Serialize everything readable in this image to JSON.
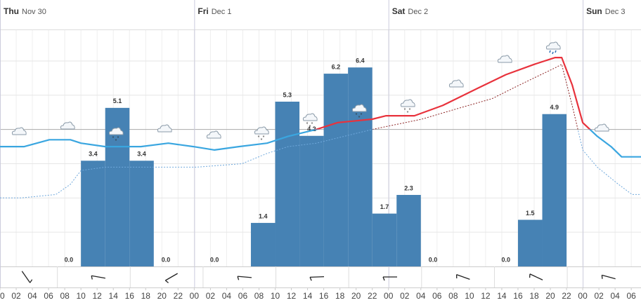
{
  "chart_data": {
    "type": "meteogram",
    "xlim": [
      0,
      79.2
    ],
    "days": [
      {
        "value": 0,
        "weekday": "Thu",
        "date": "Nov 30"
      },
      {
        "value": 24,
        "weekday": "Fri",
        "date": "Dec 1"
      },
      {
        "value": 48,
        "weekday": "Sat",
        "date": "Dec 2"
      },
      {
        "value": 72,
        "weekday": "Sun",
        "date": "Dec 3"
      }
    ],
    "xticks": [
      {
        "value": 0,
        "label": "00"
      },
      {
        "value": 2,
        "label": "02"
      },
      {
        "value": 4,
        "label": "04"
      },
      {
        "value": 6,
        "label": "06"
      },
      {
        "value": 8,
        "label": "08"
      },
      {
        "value": 10,
        "label": "10"
      },
      {
        "value": 12,
        "label": "12"
      },
      {
        "value": 14,
        "label": "14"
      },
      {
        "value": 16,
        "label": "16"
      },
      {
        "value": 18,
        "label": "18"
      },
      {
        "value": 20,
        "label": "20"
      },
      {
        "value": 22,
        "label": "22"
      },
      {
        "value": 24,
        "label": "00"
      },
      {
        "value": 26,
        "label": "02"
      },
      {
        "value": 28,
        "label": "04"
      },
      {
        "value": 30,
        "label": "06"
      },
      {
        "value": 32,
        "label": "08"
      },
      {
        "value": 34,
        "label": "10"
      },
      {
        "value": 36,
        "label": "12"
      },
      {
        "value": 38,
        "label": "14"
      },
      {
        "value": 40,
        "label": "16"
      },
      {
        "value": 42,
        "label": "18"
      },
      {
        "value": 44,
        "label": "20"
      },
      {
        "value": 46,
        "label": "22"
      },
      {
        "value": 48,
        "label": "00"
      },
      {
        "value": 50,
        "label": "02"
      },
      {
        "value": 52,
        "label": "04"
      },
      {
        "value": 54,
        "label": "06"
      },
      {
        "value": 56,
        "label": "08"
      },
      {
        "value": 58,
        "label": "10"
      },
      {
        "value": 60,
        "label": "12"
      },
      {
        "value": 62,
        "label": "14"
      },
      {
        "value": 64,
        "label": "16"
      },
      {
        "value": 66,
        "label": "18"
      },
      {
        "value": 68,
        "label": "20"
      },
      {
        "value": 70,
        "label": "22"
      },
      {
        "value": 72,
        "label": "00"
      },
      {
        "value": 74,
        "label": "02"
      },
      {
        "value": 76,
        "label": "04"
      },
      {
        "value": 78,
        "label": "06"
      }
    ],
    "precipitation": {
      "x": [
        7,
        10,
        13,
        16,
        19,
        25,
        31,
        34,
        37,
        40,
        43,
        46,
        49,
        52,
        61,
        64,
        67
      ],
      "values": [
        0,
        3.4,
        5.1,
        3.4,
        0,
        0,
        1.4,
        5.3,
        4.2,
        6.2,
        6.4,
        1.7,
        2.3,
        0,
        0,
        1.5,
        4.9
      ],
      "value_labels": [
        "0.0",
        "3.4",
        "5.1",
        "3.4",
        "0.0",
        "0.0",
        "1.4",
        "5.3",
        "4.2",
        "6.2",
        "6.4",
        "1.7",
        "2.3",
        "0.0",
        "0.0",
        "1.5",
        "4.9"
      ],
      "bar_width": 3,
      "color": "#4682b4",
      "ylim": [
        0,
        7.6
      ]
    },
    "temperature": {
      "ylim": [
        -4,
        2.9
      ],
      "yticks": [
        -3,
        -2,
        -1,
        0,
        1,
        2
      ],
      "grid": true,
      "color_split": 0
    },
    "series": [
      {
        "x": [
          0,
          3,
          6.1,
          8.7,
          10,
          13,
          17.4,
          20.8,
          23.9,
          26.5,
          29.5,
          33,
          35.6,
          39.1,
          41.7,
          46,
          47.7,
          51.2,
          54.7,
          59,
          62.5,
          66,
          68.6,
          69.4,
          70.7,
          72,
          73.8,
          75.5,
          76.8,
          79.2
        ],
        "values": [
          -0.5,
          -0.5,
          -0.3,
          -0.3,
          -0.4,
          -0.5,
          -0.5,
          -0.4,
          -0.5,
          -0.6,
          -0.5,
          -0.4,
          -0.2,
          0,
          0.2,
          0.3,
          0.4,
          0.4,
          0.7,
          1.2,
          1.6,
          1.9,
          2.1,
          2.1,
          1.3,
          0.2,
          -0.2,
          -0.5,
          -0.8,
          -0.8
        ],
        "color_above": "#e8323c",
        "color_below": "#3aa6e0",
        "dashed": false
      },
      {
        "x": [
          0,
          2.6,
          6.9,
          8.7,
          10,
          13,
          17.4,
          24.3,
          29.9,
          33,
          35.6,
          39.1,
          40.8,
          46,
          52.1,
          56.4,
          60.8,
          64.2,
          68.6,
          69.4,
          70.7,
          72,
          73.8,
          76.4,
          78.1,
          79.2
        ],
        "values": [
          -2,
          -2,
          -1.9,
          -1.6,
          -1.2,
          -1.1,
          -1.1,
          -1.1,
          -1,
          -0.7,
          -0.5,
          -0.4,
          -0.3,
          0,
          0.3,
          0.6,
          0.9,
          1.3,
          1.8,
          1.9,
          0.7,
          -0.6,
          -1.1,
          -1.6,
          -1.9,
          -1.9
        ],
        "color_above": "#8b2222",
        "color_below": "#6fa8dc",
        "dashed": true
      }
    ]
  }
}
